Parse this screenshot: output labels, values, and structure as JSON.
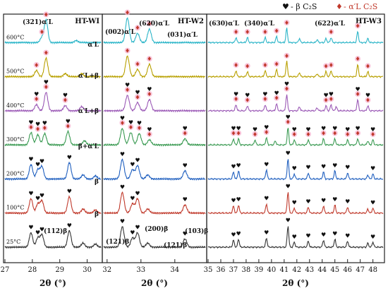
{
  "legend": {
    "beta_symbol": "♥",
    "beta_text": "- β C₂S",
    "alpha_symbol": "♦",
    "alpha_text": "- α′L C₂S",
    "beta_color": "#111111",
    "alpha_color": "#c0392b",
    "alpha_halo": "#f7b6d2"
  },
  "chart_data": [
    {
      "type": "line",
      "panel_label": "HT-WI",
      "xlabel": "2θ (°)",
      "xlim": [
        27,
        30.5
      ],
      "xticks": [
        27,
        28,
        29,
        30
      ],
      "series": [
        {
          "name": "25°C",
          "color": "#333333",
          "peaks": [
            [
              27.95,
              1.4
            ],
            [
              28.2,
              0.9
            ],
            [
              28.35,
              1.2
            ],
            [
              29.35,
              1.6
            ],
            [
              29.85,
              0.4
            ],
            [
              30.3,
              0.3
            ]
          ]
        },
        {
          "name": "100°C",
          "color": "#c0392b",
          "peaks": [
            [
              27.95,
              1.4
            ],
            [
              28.2,
              0.9
            ],
            [
              28.35,
              1.2
            ],
            [
              29.35,
              1.6
            ],
            [
              29.85,
              0.4
            ],
            [
              30.3,
              0.3
            ]
          ]
        },
        {
          "name": "200°C",
          "color": "#1f5fbf",
          "peaks": [
            [
              27.95,
              1.4
            ],
            [
              28.2,
              0.9
            ],
            [
              28.35,
              1.2
            ],
            [
              29.35,
              1.6
            ],
            [
              29.85,
              0.4
            ],
            [
              30.3,
              0.3
            ]
          ]
        },
        {
          "name": "300°C",
          "color": "#3a9a52",
          "peaks": [
            [
              27.95,
              1.2
            ],
            [
              28.2,
              1.0
            ],
            [
              28.45,
              1.1
            ],
            [
              29.3,
              1.3
            ],
            [
              29.9,
              0.4
            ]
          ]
        },
        {
          "name": "400°C",
          "color": "#9b59b6",
          "peaks": [
            [
              28.15,
              0.6
            ],
            [
              28.5,
              1.8
            ],
            [
              29.2,
              0.5
            ],
            [
              29.8,
              0.4
            ]
          ]
        },
        {
          "name": "500°C",
          "color": "#b8a000",
          "peaks": [
            [
              28.15,
              0.6
            ],
            [
              28.5,
              1.8
            ],
            [
              29.2,
              0.3
            ],
            [
              29.8,
              0.3
            ]
          ]
        },
        {
          "name": "600°C",
          "color": "#2bb5c8",
          "peaks": [
            [
              28.35,
              0.5
            ],
            [
              28.5,
              2.2
            ],
            [
              29.6,
              0.2
            ]
          ]
        }
      ],
      "annotations": [
        {
          "text": "(321)α′L",
          "series": "600°C"
        },
        {
          "text": "α′L",
          "series": "600°C"
        },
        {
          "text": "α′L+β",
          "series": "500°C"
        },
        {
          "text": "α′L+β",
          "series": "400°C"
        },
        {
          "text": "β+α′L",
          "series": "300°C"
        },
        {
          "text": "β",
          "series": "200°C"
        },
        {
          "text": "β",
          "series": "100°C"
        },
        {
          "text": "(112)β",
          "series": "25°C"
        }
      ]
    },
    {
      "type": "line",
      "panel_label": "HT-W2",
      "xlabel": "2θ (°)",
      "xlim": [
        31.9,
        34.9
      ],
      "xticks": [
        32,
        33,
        34
      ],
      "series": [
        {
          "name": "25°C",
          "color": "#333333",
          "peaks": [
            [
              32.45,
              2.0
            ],
            [
              32.75,
              0.9
            ],
            [
              32.9,
              1.4
            ],
            [
              33.2,
              0.4
            ],
            [
              34.3,
              0.8
            ]
          ]
        },
        {
          "name": "100°C",
          "color": "#c0392b",
          "peaks": [
            [
              32.45,
              2.0
            ],
            [
              32.75,
              0.9
            ],
            [
              32.9,
              1.4
            ],
            [
              33.2,
              0.4
            ],
            [
              34.3,
              0.8
            ]
          ]
        },
        {
          "name": "200°C",
          "color": "#1f5fbf",
          "peaks": [
            [
              32.45,
              1.9
            ],
            [
              32.75,
              0.9
            ],
            [
              32.9,
              1.3
            ],
            [
              33.2,
              0.4
            ],
            [
              34.3,
              0.8
            ]
          ]
        },
        {
          "name": "300°C",
          "color": "#3a9a52",
          "peaks": [
            [
              32.45,
              1.6
            ],
            [
              32.7,
              1.2
            ],
            [
              32.95,
              1.1
            ],
            [
              33.25,
              0.5
            ],
            [
              34.3,
              0.6
            ]
          ]
        },
        {
          "name": "400°C",
          "color": "#9b59b6",
          "peaks": [
            [
              32.6,
              1.5
            ],
            [
              32.9,
              0.8
            ],
            [
              33.25,
              1.1
            ]
          ]
        },
        {
          "name": "500°C",
          "color": "#b8a000",
          "peaks": [
            [
              32.6,
              2.0
            ],
            [
              32.9,
              0.7
            ],
            [
              33.25,
              1.2
            ]
          ]
        },
        {
          "name": "600°C",
          "color": "#2bb5c8",
          "peaks": [
            [
              32.6,
              2.4
            ],
            [
              32.9,
              0.9
            ],
            [
              33.25,
              1.3
            ]
          ]
        }
      ],
      "annotations": [
        {
          "text": "(002)α′L",
          "series": "600°C"
        },
        {
          "text": "(620)α′L",
          "series": "600°C"
        },
        {
          "text": "(031)α′L",
          "series": "600°C"
        },
        {
          "text": "(121)β",
          "series": "25°C"
        },
        {
          "text": "(200)β",
          "series": "25°C"
        },
        {
          "text": "(121)β",
          "series": "25°C"
        },
        {
          "text": "(103)β",
          "series": "25°C"
        }
      ]
    },
    {
      "type": "line",
      "panel_label": "HT-W3",
      "xlabel": "2θ (°)",
      "xlim": [
        35,
        48.8
      ],
      "xticks": [
        35,
        36,
        37,
        38,
        39,
        40,
        41,
        42,
        43,
        44,
        45,
        46,
        47,
        48
      ],
      "series": [
        {
          "name": "25°C",
          "color": "#333333",
          "peaks": [
            [
              37.0,
              0.7
            ],
            [
              37.4,
              0.8
            ],
            [
              39.6,
              0.9
            ],
            [
              41.3,
              2.1
            ],
            [
              41.8,
              0.5
            ],
            [
              42.9,
              0.6
            ],
            [
              44.1,
              0.7
            ],
            [
              45.0,
              0.8
            ],
            [
              46.0,
              0.6
            ],
            [
              47.6,
              0.4
            ],
            [
              48.0,
              0.5
            ]
          ]
        },
        {
          "name": "100°C",
          "color": "#c0392b",
          "peaks": [
            [
              37.0,
              0.7
            ],
            [
              37.4,
              0.8
            ],
            [
              39.6,
              0.9
            ],
            [
              41.3,
              2.1
            ],
            [
              41.8,
              0.5
            ],
            [
              42.9,
              0.6
            ],
            [
              44.1,
              0.7
            ],
            [
              45.0,
              0.8
            ],
            [
              46.0,
              0.6
            ],
            [
              47.6,
              0.4
            ],
            [
              48.0,
              0.5
            ]
          ]
        },
        {
          "name": "200°C",
          "color": "#1f5fbf",
          "peaks": [
            [
              37.0,
              0.7
            ],
            [
              37.4,
              0.8
            ],
            [
              39.6,
              0.9
            ],
            [
              41.3,
              2.0
            ],
            [
              41.8,
              0.5
            ],
            [
              42.9,
              0.6
            ],
            [
              44.1,
              0.7
            ],
            [
              45.0,
              0.8
            ],
            [
              46.0,
              0.6
            ],
            [
              47.6,
              0.4
            ],
            [
              48.0,
              0.5
            ]
          ]
        },
        {
          "name": "300°C",
          "color": "#3a9a52",
          "peaks": [
            [
              37.0,
              0.6
            ],
            [
              37.4,
              0.6
            ],
            [
              38.7,
              0.5
            ],
            [
              39.6,
              0.7
            ],
            [
              40.3,
              0.4
            ],
            [
              41.3,
              1.7
            ],
            [
              41.8,
              0.5
            ],
            [
              42.9,
              0.5
            ],
            [
              44.1,
              0.6
            ],
            [
              45.0,
              0.6
            ],
            [
              46.0,
              0.5
            ],
            [
              46.8,
              0.6
            ],
            [
              47.6,
              0.4
            ],
            [
              48.0,
              0.5
            ]
          ]
        },
        {
          "name": "400°C",
          "color": "#9b59b6",
          "peaks": [
            [
              37.2,
              0.6
            ],
            [
              38.1,
              0.5
            ],
            [
              39.5,
              0.6
            ],
            [
              40.4,
              0.7
            ],
            [
              41.2,
              1.6
            ],
            [
              42.2,
              0.4
            ],
            [
              43.6,
              0.3
            ],
            [
              44.3,
              0.5
            ],
            [
              44.7,
              0.6
            ],
            [
              45.1,
              0.4
            ],
            [
              46.8,
              1.1
            ],
            [
              47.6,
              0.5
            ]
          ]
        },
        {
          "name": "500°C",
          "color": "#b8a000",
          "peaks": [
            [
              37.2,
              0.6
            ],
            [
              38.1,
              0.5
            ],
            [
              39.5,
              0.6
            ],
            [
              40.4,
              0.7
            ],
            [
              41.2,
              1.5
            ],
            [
              42.2,
              0.4
            ],
            [
              43.6,
              0.3
            ],
            [
              44.3,
              0.5
            ],
            [
              44.7,
              0.6
            ],
            [
              46.8,
              1.2
            ],
            [
              47.6,
              0.5
            ]
          ]
        },
        {
          "name": "600°C",
          "color": "#2bb5c8",
          "peaks": [
            [
              37.2,
              0.5
            ],
            [
              38.1,
              0.5
            ],
            [
              39.5,
              0.5
            ],
            [
              40.4,
              0.6
            ],
            [
              41.2,
              1.4
            ],
            [
              42.2,
              0.4
            ],
            [
              43.6,
              0.3
            ],
            [
              44.3,
              0.4
            ],
            [
              44.7,
              0.5
            ],
            [
              46.8,
              1.1
            ],
            [
              47.6,
              0.4
            ]
          ]
        }
      ],
      "annotations": [
        {
          "text": "(630)α′L",
          "series": "600°C"
        },
        {
          "text": "(340)α′L",
          "series": "600°C"
        },
        {
          "text": "(622)α′L",
          "series": "600°C"
        }
      ]
    }
  ]
}
